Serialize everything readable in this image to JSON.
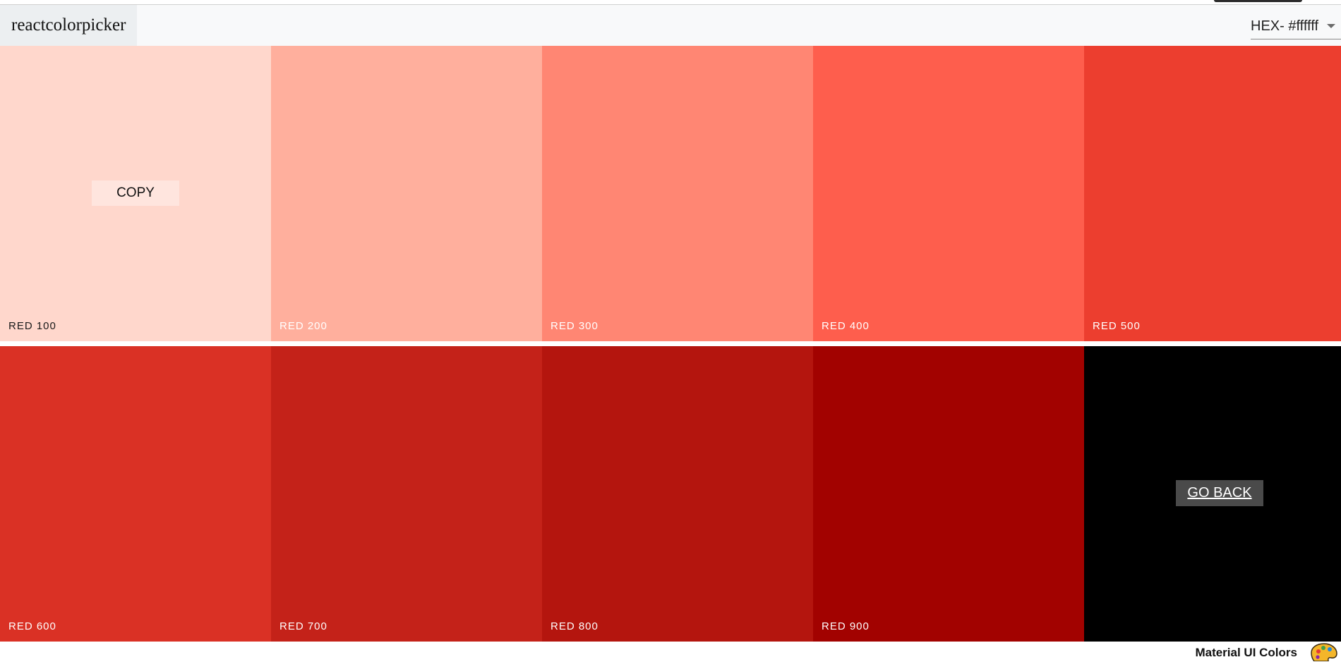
{
  "navbar": {
    "logo": "reactcolorpicker",
    "format_select": {
      "value": "HEX- #ffffff"
    }
  },
  "palette": {
    "rows": [
      [
        {
          "name": "red 100",
          "color": "#ffd7cc",
          "text_color": "#1a1a1a",
          "copy_label": "COPY"
        },
        {
          "name": "red 200",
          "color": "#ffaf9d",
          "text_color": "#ffffff"
        },
        {
          "name": "red 300",
          "color": "#ff8673",
          "text_color": "#ffffff"
        },
        {
          "name": "red 400",
          "color": "#fe5e4d",
          "text_color": "#ffffff"
        },
        {
          "name": "red 500",
          "color": "#ec3e2f",
          "text_color": "#ffffff"
        }
      ],
      [
        {
          "name": "red 600",
          "color": "#da3125",
          "text_color": "#ffffff"
        },
        {
          "name": "red 700",
          "color": "#c42219",
          "text_color": "#ffffff"
        },
        {
          "name": "red 800",
          "color": "#b4150e",
          "text_color": "#ffffff"
        },
        {
          "name": "red 900",
          "color": "#a20200",
          "text_color": "#ffffff"
        }
      ]
    ],
    "go_back": {
      "label": "GO BACK",
      "color": "#000000"
    }
  },
  "footer": {
    "text": "Material UI Colors",
    "icon": "palette-icon"
  }
}
